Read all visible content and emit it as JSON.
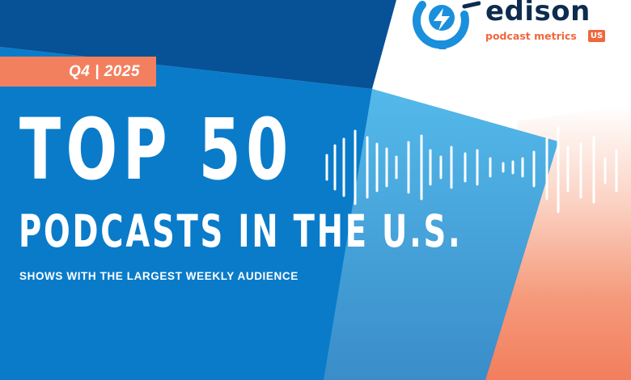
{
  "badge": {
    "label": "Q4 | 2025"
  },
  "headline": {
    "line1": "TOP 50",
    "line2": "PODCASTS IN THE U.S."
  },
  "subtitle": "SHOWS WITH THE LARGEST WEEKLY AUDIENCE",
  "logo": {
    "word": "edison",
    "tagline": "podcast metrics",
    "region": "US"
  },
  "colors": {
    "blue": "#0a7bc9",
    "navy": "#064a8c",
    "light_blue": "#5bbcea",
    "coral": "#f2805f",
    "logo_navy": "#0d2c4f",
    "logo_orange": "#f0673e"
  },
  "icons": [
    "soundwave-icon",
    "edison-lightbulb-icon"
  ]
}
